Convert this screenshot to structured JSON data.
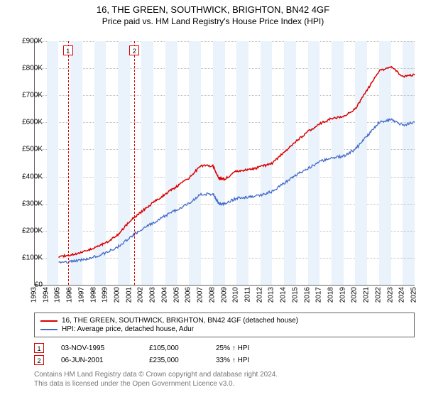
{
  "title": "16, THE GREEN, SOUTHWICK, BRIGHTON, BN42 4GF",
  "subtitle": "Price paid vs. HM Land Registry's House Price Index (HPI)",
  "chart": {
    "type": "line",
    "background_color": "#ffffff",
    "band_color": "#eaf2fb",
    "grid_color": "#bbbbbb",
    "axis_color": "#666666",
    "ylabel_prefix": "£",
    "ylim": [
      0,
      900
    ],
    "ytick_step": 100,
    "yticks": [
      "£0",
      "£100K",
      "£200K",
      "£300K",
      "£400K",
      "£500K",
      "£600K",
      "£700K",
      "£800K",
      "£900K"
    ],
    "xlim": [
      1993,
      2025
    ],
    "xticks": [
      1993,
      1994,
      1995,
      1996,
      1997,
      1998,
      1999,
      2000,
      2001,
      2002,
      2003,
      2004,
      2005,
      2006,
      2007,
      2008,
      2009,
      2010,
      2011,
      2012,
      2013,
      2014,
      2015,
      2016,
      2017,
      2018,
      2019,
      2020,
      2021,
      2022,
      2023,
      2024,
      2025
    ],
    "label_fontsize": 10,
    "title_fontsize": 13,
    "series": [
      {
        "name": "16, THE GREEN, SOUTHWICK, BRIGHTON, BN42 4GF (detached house)",
        "color": "#d80000",
        "line_width": 1.5,
        "x": [
          1995,
          1996,
          1997,
          1998,
          1999,
          2000,
          2001,
          2002,
          2003,
          2004,
          2005,
          2006,
          2007,
          2008,
          2008.5,
          2009,
          2010,
          2011,
          2012,
          2013,
          2014,
          2015,
          2016,
          2017,
          2018,
          2019,
          2020,
          2021,
          2022,
          2023,
          2024,
          2025
        ],
        "y": [
          105,
          110,
          120,
          135,
          155,
          185,
          235,
          270,
          305,
          335,
          365,
          395,
          440,
          440,
          395,
          390,
          420,
          425,
          435,
          450,
          490,
          530,
          565,
          595,
          615,
          620,
          650,
          720,
          790,
          805,
          770,
          775
        ]
      },
      {
        "name": "HPI: Average price, detached house, Adur",
        "color": "#4169c8",
        "line_width": 1.3,
        "x": [
          1995,
          1996,
          1997,
          1998,
          1999,
          2000,
          2001,
          2002,
          2003,
          2004,
          2005,
          2006,
          2007,
          2008,
          2008.5,
          2009,
          2010,
          2011,
          2012,
          2013,
          2014,
          2015,
          2016,
          2017,
          2018,
          2019,
          2020,
          2021,
          2022,
          2023,
          2024,
          2025
        ],
        "y": [
          80,
          85,
          92,
          103,
          118,
          140,
          175,
          205,
          230,
          255,
          278,
          300,
          335,
          335,
          300,
          300,
          320,
          325,
          330,
          345,
          375,
          405,
          430,
          455,
          470,
          475,
          500,
          550,
          600,
          610,
          590,
          600
        ]
      }
    ],
    "markers": [
      {
        "label": "1",
        "year": 1995.8,
        "color": "#d80000"
      },
      {
        "label": "2",
        "year": 2001.4,
        "color": "#d80000"
      }
    ]
  },
  "legend": {
    "rows": [
      {
        "color": "#d80000",
        "label": "16, THE GREEN, SOUTHWICK, BRIGHTON, BN42 4GF (detached house)"
      },
      {
        "color": "#4169c8",
        "label": "HPI: Average price, detached house, Adur"
      }
    ]
  },
  "transactions": [
    {
      "label": "1",
      "color": "#d80000",
      "date": "03-NOV-1995",
      "price": "£105,000",
      "pct": "25% ↑ HPI"
    },
    {
      "label": "2",
      "color": "#d80000",
      "date": "06-JUN-2001",
      "price": "£235,000",
      "pct": "33% ↑ HPI"
    }
  ],
  "footer": {
    "line1": "Contains HM Land Registry data © Crown copyright and database right 2024.",
    "line2": "This data is licensed under the Open Government Licence v3.0."
  }
}
